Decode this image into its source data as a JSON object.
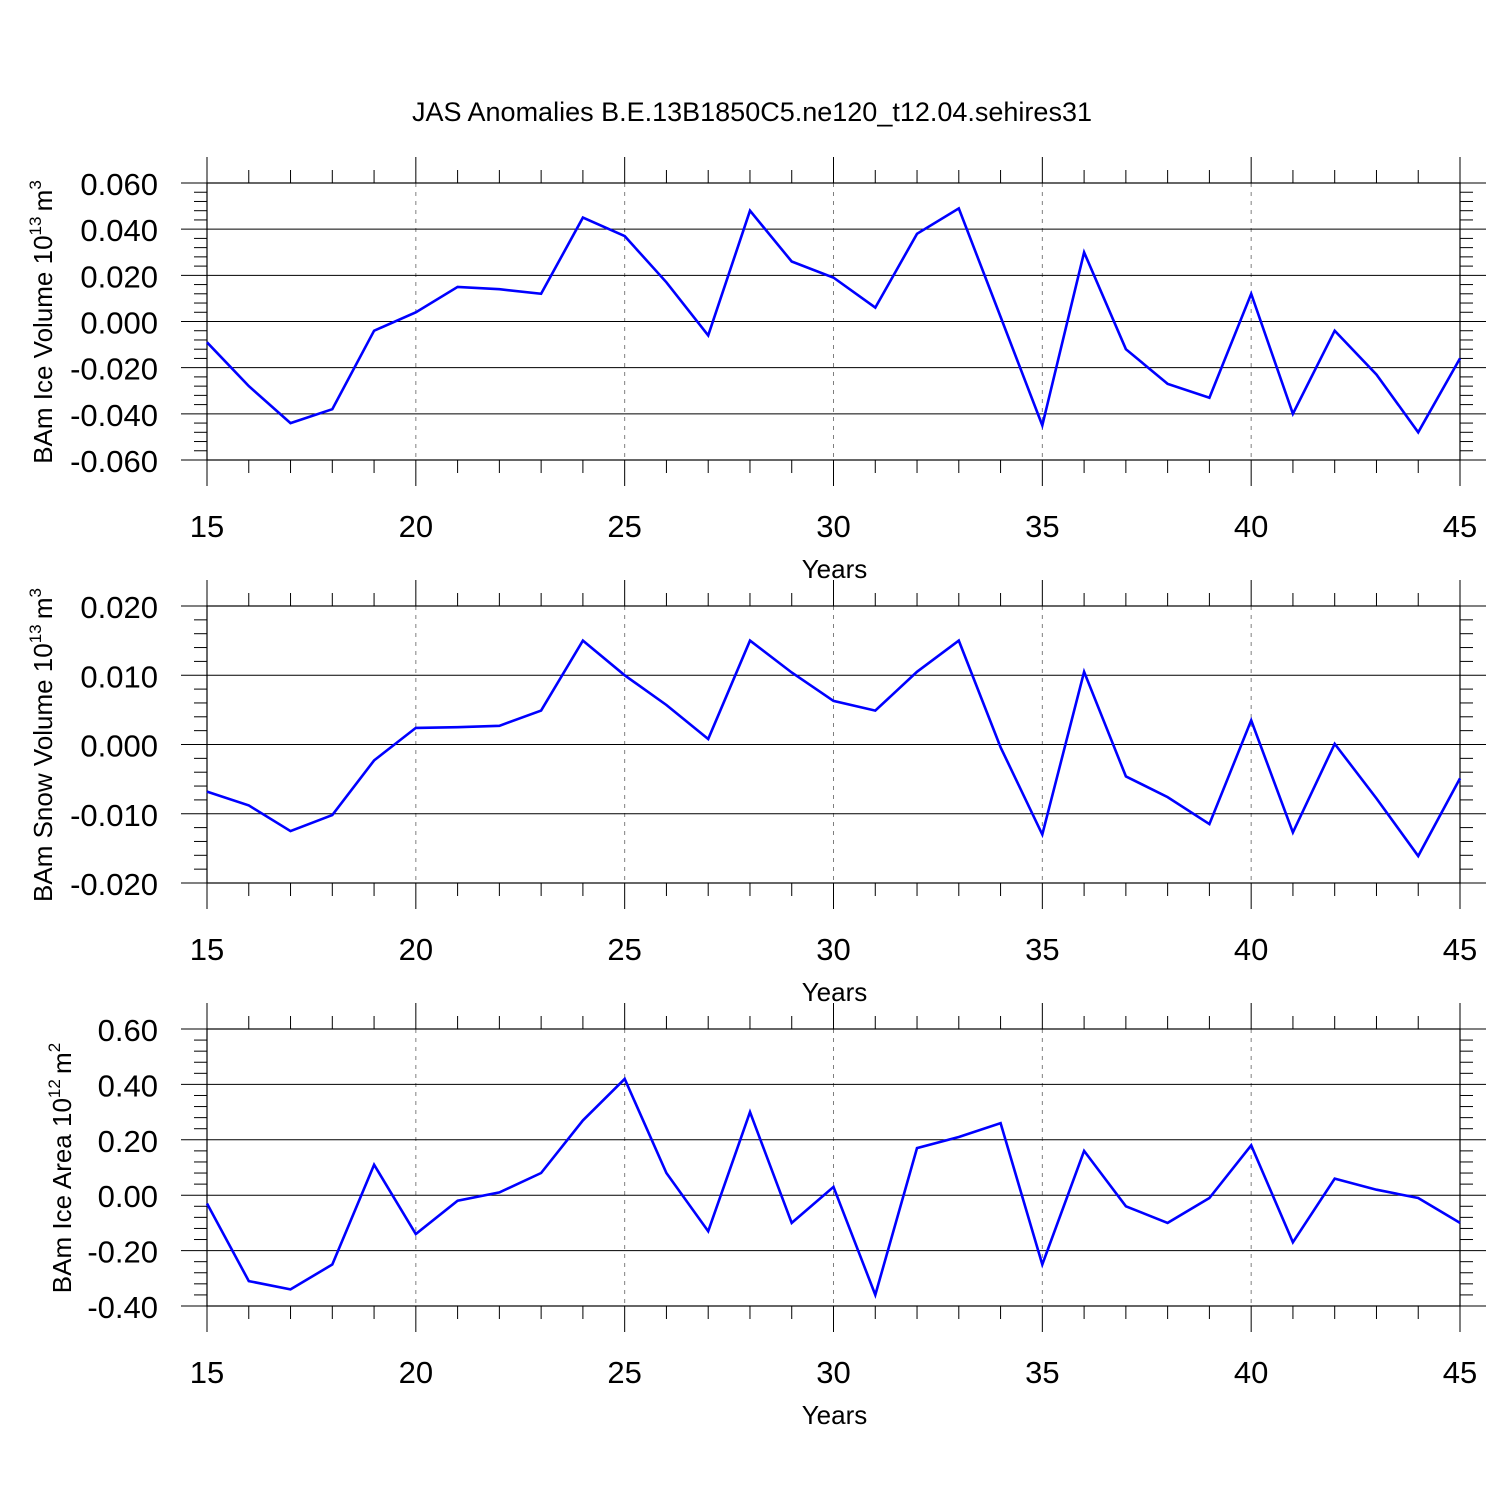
{
  "figure": {
    "title": "JAS Anomalies B.E.13B1850C5.ne120_t12.04.sehires31"
  },
  "chart_data": [
    {
      "type": "line",
      "ylabel_text": "BAm Ice Volume 10",
      "ylabel_exp": "13",
      "ylabel_unit": "m",
      "ylabel_unit_exp": "3",
      "xlabel": "Years",
      "xlim": [
        15,
        45
      ],
      "ylim": [
        -0.06,
        0.06
      ],
      "yticks": [
        0.06,
        0.04,
        0.02,
        0.0,
        -0.02,
        -0.04,
        -0.06
      ],
      "ytick_labels": [
        "0.060",
        "0.040",
        "0.020",
        "0.000",
        "-0.020",
        "-0.040",
        "-0.060"
      ],
      "xticks": [
        15,
        20,
        25,
        30,
        35,
        40,
        45
      ],
      "xtick_labels": [
        "15",
        "20",
        "25",
        "30",
        "35",
        "40",
        "45"
      ],
      "grid_x": [
        20,
        25,
        30,
        35,
        40
      ],
      "line_color": "#0000ff",
      "x": [
        15,
        16,
        17,
        18,
        19,
        20,
        21,
        22,
        23,
        24,
        25,
        26,
        27,
        28,
        29,
        30,
        31,
        32,
        33,
        34,
        35,
        36,
        37,
        38,
        39,
        40,
        41,
        42,
        43,
        44,
        45
      ],
      "values": [
        -0.009,
        -0.028,
        -0.044,
        -0.038,
        -0.004,
        0.004,
        0.015,
        0.014,
        0.012,
        0.045,
        0.037,
        0.017,
        -0.006,
        0.048,
        0.026,
        0.019,
        0.006,
        0.038,
        0.049,
        0.002,
        -0.045,
        0.03,
        -0.012,
        -0.027,
        -0.033,
        0.012,
        -0.04,
        -0.004,
        -0.023,
        -0.048,
        -0.016
      ]
    },
    {
      "type": "line",
      "ylabel_text": "BAm Snow Volume 10",
      "ylabel_exp": "13",
      "ylabel_unit": "m",
      "ylabel_unit_exp": "3",
      "xlabel": "Years",
      "xlim": [
        15,
        45
      ],
      "ylim": [
        -0.02,
        0.02
      ],
      "yticks": [
        0.02,
        0.01,
        0.0,
        -0.01,
        -0.02
      ],
      "ytick_labels": [
        "0.020",
        "0.010",
        "0.000",
        "-0.010",
        "-0.020"
      ],
      "xticks": [
        15,
        20,
        25,
        30,
        35,
        40,
        45
      ],
      "xtick_labels": [
        "15",
        "20",
        "25",
        "30",
        "35",
        "40",
        "45"
      ],
      "grid_x": [
        20,
        25,
        30,
        35,
        40
      ],
      "line_color": "#0000ff",
      "x": [
        15,
        16,
        17,
        18,
        19,
        20,
        21,
        22,
        23,
        24,
        25,
        26,
        27,
        28,
        29,
        30,
        31,
        32,
        33,
        34,
        35,
        36,
        37,
        38,
        39,
        40,
        41,
        42,
        43,
        44,
        45
      ],
      "values": [
        -0.0068,
        -0.0088,
        -0.0125,
        -0.0102,
        -0.0023,
        0.0024,
        0.0025,
        0.0027,
        0.0049,
        0.015,
        0.01,
        0.0057,
        0.0008,
        0.015,
        0.0104,
        0.0063,
        0.0049,
        0.0105,
        0.015,
        -0.0004,
        -0.013,
        0.0105,
        -0.0046,
        -0.0076,
        -0.0115,
        0.0035,
        -0.0127,
        0.0001,
        -0.0078,
        -0.0161,
        -0.0049
      ]
    },
    {
      "type": "line",
      "ylabel_text": "BAm Ice Area 10",
      "ylabel_exp": "12",
      "ylabel_unit": "m",
      "ylabel_unit_exp": "2",
      "xlabel": "Years",
      "xlim": [
        15,
        45
      ],
      "ylim": [
        -0.4,
        0.6
      ],
      "yticks": [
        0.6,
        0.4,
        0.2,
        0.0,
        -0.2,
        -0.4
      ],
      "ytick_labels": [
        "0.60",
        "0.40",
        "0.20",
        "0.00",
        "-0.20",
        "-0.40"
      ],
      "xticks": [
        15,
        20,
        25,
        30,
        35,
        40,
        45
      ],
      "xtick_labels": [
        "15",
        "20",
        "25",
        "30",
        "35",
        "40",
        "45"
      ],
      "grid_x": [
        20,
        25,
        30,
        35,
        40
      ],
      "line_color": "#0000ff",
      "x": [
        15,
        16,
        17,
        18,
        19,
        20,
        21,
        22,
        23,
        24,
        25,
        26,
        27,
        28,
        29,
        30,
        31,
        32,
        33,
        34,
        35,
        36,
        37,
        38,
        39,
        40,
        41,
        42,
        43,
        44,
        45
      ],
      "values": [
        -0.03,
        -0.31,
        -0.34,
        -0.25,
        0.11,
        -0.14,
        -0.02,
        0.01,
        0.08,
        0.27,
        0.42,
        0.08,
        -0.13,
        0.3,
        -0.1,
        0.03,
        -0.36,
        0.17,
        0.21,
        0.26,
        -0.25,
        0.16,
        -0.04,
        -0.1,
        -0.01,
        0.18,
        -0.17,
        0.06,
        0.02,
        -0.01,
        -0.1
      ]
    }
  ]
}
